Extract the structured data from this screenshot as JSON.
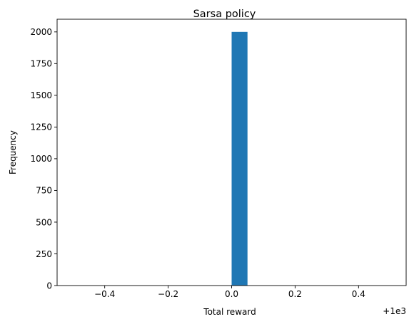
{
  "chart_data": {
    "type": "bar",
    "title": "Sarsa policy",
    "xlabel": "Total reward",
    "ylabel": "Frequency",
    "x_offset_label": "+1e3",
    "xlim": [
      -0.55,
      0.55
    ],
    "ylim": [
      0,
      2100
    ],
    "xticks": [
      -0.4,
      -0.2,
      0.0,
      0.2,
      0.4
    ],
    "xtick_labels": [
      "−0.4",
      "−0.2",
      "0.0",
      "0.2",
      "0.4"
    ],
    "yticks": [
      0,
      250,
      500,
      750,
      1000,
      1250,
      1500,
      1750,
      2000
    ],
    "ytick_labels": [
      "0",
      "250",
      "500",
      "750",
      "1000",
      "1250",
      "1500",
      "1750",
      "2000"
    ],
    "bars": [
      {
        "x0": 0.0,
        "x1": 0.05,
        "value": 2000
      }
    ],
    "bar_color": "#1f77b4",
    "grid": false,
    "legend": "none"
  }
}
